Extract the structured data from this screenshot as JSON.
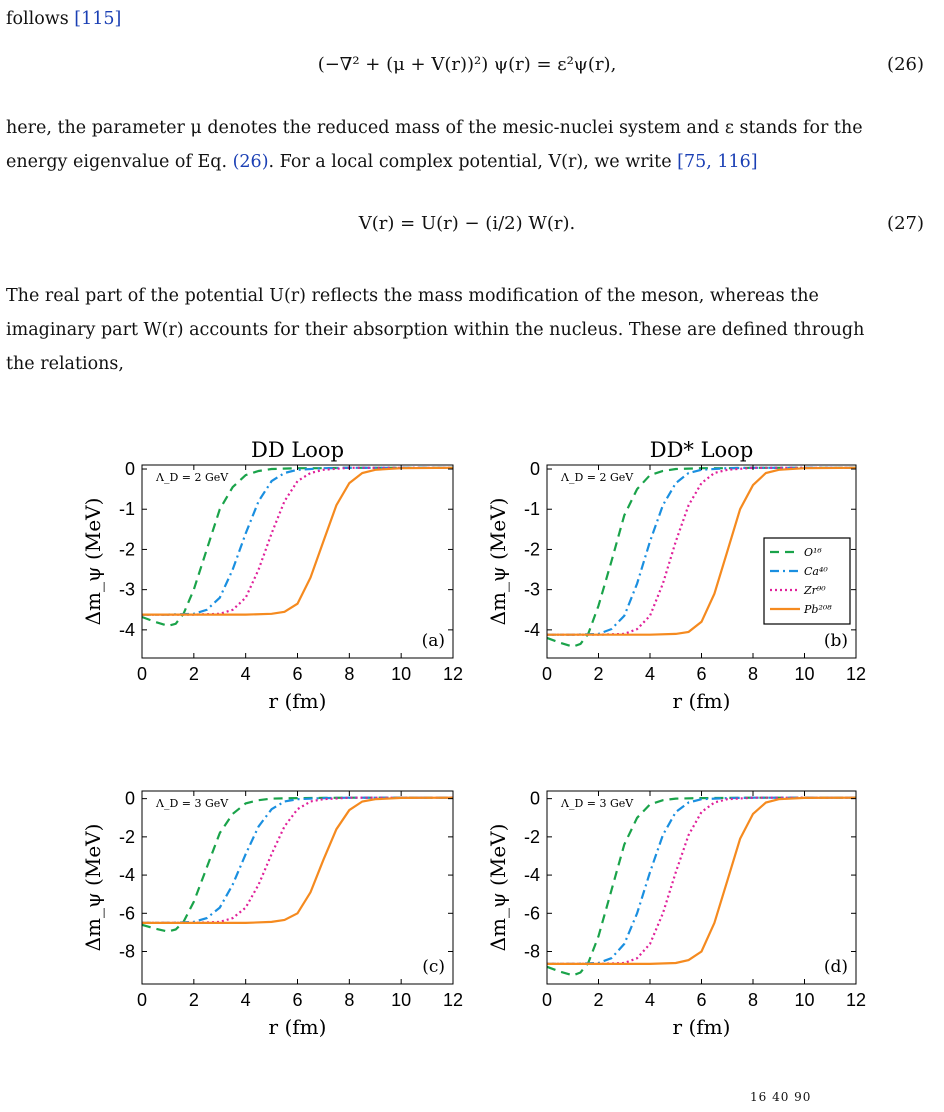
{
  "text": {
    "p0_text": "follows",
    "p0_cite": "[115]",
    "eq26": "(−∇² + (μ + V(r))²) ψ(r) = ε²ψ(r),",
    "eq26_num": "(26)",
    "p1_line1": "here, the parameter μ denotes the reduced mass of the mesic-nuclei system and ε stands for the",
    "p1_line2a": "energy eigenvalue of Eq.",
    "p1_ref": "(26)",
    "p1_line2b": ". For a local complex potential, V(r), we write",
    "p1_cite": "[75, 116]",
    "eq27": "V(r) = U(r) − (i/2) W(r).",
    "eq27_num": "(27)",
    "p2_line1": "The real part of the potential U(r) reflects the mass modification of the meson, whereas the",
    "p2_line2": "imaginary part W(r) accounts for their absorption within the nucleus. These are defined through",
    "p2_line3": "the relations,",
    "caption_frag": "16    40    90"
  },
  "chart_data": [
    {
      "type": "line",
      "panel": "(a)",
      "title": "DD Loop",
      "annotation": "Λ_D = 2 GeV",
      "xlabel": "r (fm)",
      "ylabel": "Δm_ψ (MeV)",
      "xlim": [
        0,
        12
      ],
      "ylim": [
        -4.7,
        0.1
      ],
      "xticks": [
        0,
        2,
        4,
        6,
        8,
        10,
        12
      ],
      "yticks": [
        0,
        -1,
        -2,
        -3,
        -4
      ],
      "series": [
        {
          "name": "O¹⁶",
          "color": "#1aa34a",
          "dash": "9,6",
          "x": [
            0,
            0.5,
            1,
            1.3,
            1.6,
            2,
            2.5,
            3,
            3.5,
            4,
            4.5,
            5,
            6,
            7,
            8,
            12
          ],
          "y": [
            -3.68,
            -3.8,
            -3.9,
            -3.85,
            -3.6,
            -3.0,
            -2.0,
            -1.0,
            -0.45,
            -0.15,
            -0.05,
            0,
            0.02,
            0.02,
            0.03,
            0.03
          ]
        },
        {
          "name": "Ca⁴⁰",
          "color": "#1a8fe0",
          "dash": "9,4,2,4",
          "x": [
            0,
            1,
            2,
            2.5,
            3,
            3.5,
            4,
            4.5,
            5,
            5.5,
            6,
            7,
            8,
            12
          ],
          "y": [
            -3.62,
            -3.62,
            -3.6,
            -3.5,
            -3.2,
            -2.5,
            -1.6,
            -0.8,
            -0.3,
            -0.1,
            -0.02,
            0.02,
            0.03,
            0.03
          ]
        },
        {
          "name": "Zr⁹⁰",
          "color": "#e0209a",
          "dash": "2,3",
          "x": [
            0,
            2,
            3,
            3.5,
            4,
            4.5,
            5,
            5.5,
            6,
            6.5,
            7,
            8,
            12
          ],
          "y": [
            -3.62,
            -3.62,
            -3.6,
            -3.5,
            -3.2,
            -2.5,
            -1.6,
            -0.8,
            -0.3,
            -0.1,
            -0.02,
            0.03,
            0.03
          ]
        },
        {
          "name": "Pb²⁰⁸",
          "color": "#f58a1f",
          "dash": "",
          "x": [
            0,
            2,
            4,
            5,
            5.5,
            6,
            6.5,
            7,
            7.5,
            8,
            8.5,
            9,
            10,
            12
          ],
          "y": [
            -3.62,
            -3.62,
            -3.62,
            -3.6,
            -3.55,
            -3.35,
            -2.7,
            -1.8,
            -0.9,
            -0.35,
            -0.1,
            -0.02,
            0.02,
            0.03
          ]
        }
      ]
    },
    {
      "type": "line",
      "panel": "(b)",
      "title": "DD* Loop",
      "annotation": "Λ_D = 2 GeV",
      "xlabel": "r (fm)",
      "ylabel": "Δm_ψ (MeV)",
      "xlim": [
        0,
        12
      ],
      "ylim": [
        -4.7,
        0.1
      ],
      "xticks": [
        0,
        2,
        4,
        6,
        8,
        10,
        12
      ],
      "yticks": [
        0,
        -1,
        -2,
        -3,
        -4
      ],
      "legend": "right",
      "series": [
        {
          "name": "O¹⁶",
          "color": "#1aa34a",
          "dash": "9,6",
          "x": [
            0,
            0.5,
            1,
            1.3,
            1.6,
            2,
            2.5,
            3,
            3.5,
            4,
            4.5,
            5,
            6,
            7,
            8,
            12
          ],
          "y": [
            -4.2,
            -4.32,
            -4.42,
            -4.35,
            -4.1,
            -3.4,
            -2.3,
            -1.15,
            -0.5,
            -0.15,
            -0.05,
            0,
            0.02,
            0.02,
            0.03,
            0.03
          ]
        },
        {
          "name": "Ca⁴⁰",
          "color": "#1a8fe0",
          "dash": "9,4,2,4",
          "x": [
            0,
            1,
            2,
            2.5,
            3,
            3.5,
            4,
            4.5,
            5,
            5.5,
            6,
            7,
            8,
            12
          ],
          "y": [
            -4.12,
            -4.12,
            -4.1,
            -3.98,
            -3.65,
            -2.85,
            -1.8,
            -0.9,
            -0.35,
            -0.1,
            -0.02,
            0.02,
            0.03,
            0.03
          ]
        },
        {
          "name": "Zr⁹⁰",
          "color": "#e0209a",
          "dash": "2,3",
          "x": [
            0,
            2,
            3,
            3.5,
            4,
            4.5,
            5,
            5.5,
            6,
            6.5,
            7,
            8,
            12
          ],
          "y": [
            -4.12,
            -4.12,
            -4.1,
            -3.98,
            -3.65,
            -2.85,
            -1.8,
            -0.9,
            -0.35,
            -0.1,
            -0.02,
            0.03,
            0.03
          ]
        },
        {
          "name": "Pb²⁰⁸",
          "color": "#f58a1f",
          "dash": "",
          "x": [
            0,
            2,
            4,
            5,
            5.5,
            6,
            6.5,
            7,
            7.5,
            8,
            8.5,
            9,
            10,
            12
          ],
          "y": [
            -4.12,
            -4.12,
            -4.12,
            -4.1,
            -4.05,
            -3.8,
            -3.1,
            -2.05,
            -1.0,
            -0.4,
            -0.1,
            -0.02,
            0.02,
            0.03
          ]
        }
      ]
    },
    {
      "type": "line",
      "panel": "(c)",
      "title": "",
      "annotation": "Λ_D = 3 GeV",
      "xlabel": "r (fm)",
      "ylabel": "Δm_ψ (MeV)",
      "xlim": [
        0,
        12
      ],
      "ylim": [
        -9.7,
        0.4
      ],
      "xticks": [
        0,
        2,
        4,
        6,
        8,
        10,
        12
      ],
      "yticks": [
        0,
        -2,
        -4,
        -6,
        -8
      ],
      "series": [
        {
          "name": "O¹⁶",
          "color": "#1aa34a",
          "dash": "9,6",
          "x": [
            0,
            0.5,
            1,
            1.3,
            1.6,
            2,
            2.5,
            3,
            3.5,
            4,
            4.5,
            5,
            6,
            7,
            8,
            12
          ],
          "y": [
            -6.6,
            -6.8,
            -6.95,
            -6.85,
            -6.45,
            -5.4,
            -3.6,
            -1.8,
            -0.8,
            -0.25,
            -0.08,
            0,
            0.03,
            0.04,
            0.05,
            0.05
          ]
        },
        {
          "name": "Ca⁴⁰",
          "color": "#1a8fe0",
          "dash": "9,4,2,4",
          "x": [
            0,
            1,
            2,
            2.5,
            3,
            3.5,
            4,
            4.5,
            5,
            5.5,
            6,
            7,
            8,
            12
          ],
          "y": [
            -6.5,
            -6.5,
            -6.45,
            -6.25,
            -5.7,
            -4.5,
            -2.9,
            -1.45,
            -0.55,
            -0.15,
            -0.03,
            0.03,
            0.05,
            0.05
          ]
        },
        {
          "name": "Zr⁹⁰",
          "color": "#e0209a",
          "dash": "2,3",
          "x": [
            0,
            2,
            3,
            3.5,
            4,
            4.5,
            5,
            5.5,
            6,
            6.5,
            7,
            8,
            12
          ],
          "y": [
            -6.5,
            -6.5,
            -6.45,
            -6.25,
            -5.7,
            -4.5,
            -2.9,
            -1.45,
            -0.55,
            -0.15,
            -0.03,
            0.05,
            0.05
          ]
        },
        {
          "name": "Pb²⁰⁸",
          "color": "#f58a1f",
          "dash": "",
          "x": [
            0,
            2,
            4,
            5,
            5.5,
            6,
            6.5,
            7,
            7.5,
            8,
            8.5,
            9,
            10,
            12
          ],
          "y": [
            -6.5,
            -6.5,
            -6.5,
            -6.45,
            -6.35,
            -6.0,
            -4.9,
            -3.2,
            -1.6,
            -0.6,
            -0.15,
            -0.03,
            0.04,
            0.05
          ]
        }
      ]
    },
    {
      "type": "line",
      "panel": "(d)",
      "title": "",
      "annotation": "Λ_D = 3 GeV",
      "xlabel": "r (fm)",
      "ylabel": "Δm_ψ (MeV)",
      "xlim": [
        0,
        12
      ],
      "ylim": [
        -9.7,
        0.4
      ],
      "xticks": [
        0,
        2,
        4,
        6,
        8,
        10,
        12
      ],
      "yticks": [
        0,
        -2,
        -4,
        -6,
        -8
      ],
      "series": [
        {
          "name": "O¹⁶",
          "color": "#1aa34a",
          "dash": "9,6",
          "x": [
            0,
            0.5,
            1,
            1.3,
            1.6,
            2,
            2.5,
            3,
            3.5,
            4,
            4.5,
            5,
            6,
            7,
            8,
            12
          ],
          "y": [
            -8.8,
            -9.05,
            -9.25,
            -9.1,
            -8.6,
            -7.2,
            -4.8,
            -2.4,
            -1.0,
            -0.3,
            -0.08,
            0,
            0.03,
            0.04,
            0.05,
            0.05
          ]
        },
        {
          "name": "Ca⁴⁰",
          "color": "#1a8fe0",
          "dash": "9,4,2,4",
          "x": [
            0,
            1,
            2,
            2.5,
            3,
            3.5,
            4,
            4.5,
            5,
            5.5,
            6,
            7,
            8,
            12
          ],
          "y": [
            -8.65,
            -8.65,
            -8.6,
            -8.35,
            -7.6,
            -6.0,
            -3.85,
            -1.9,
            -0.7,
            -0.2,
            -0.03,
            0.03,
            0.05,
            0.05
          ]
        },
        {
          "name": "Zr⁹⁰",
          "color": "#e0209a",
          "dash": "2,3",
          "x": [
            0,
            2,
            3,
            3.5,
            4,
            4.5,
            5,
            5.5,
            6,
            6.5,
            7,
            8,
            12
          ],
          "y": [
            -8.65,
            -8.65,
            -8.6,
            -8.35,
            -7.6,
            -6.0,
            -3.85,
            -1.9,
            -0.7,
            -0.2,
            -0.03,
            0.05,
            0.05
          ]
        },
        {
          "name": "Pb²⁰⁸",
          "color": "#f58a1f",
          "dash": "",
          "x": [
            0,
            2,
            4,
            5,
            5.5,
            6,
            6.5,
            7,
            7.5,
            8,
            8.5,
            9,
            10,
            12
          ],
          "y": [
            -8.65,
            -8.65,
            -8.65,
            -8.6,
            -8.45,
            -8.0,
            -6.5,
            -4.3,
            -2.1,
            -0.8,
            -0.2,
            -0.03,
            0.04,
            0.05
          ]
        }
      ]
    }
  ]
}
